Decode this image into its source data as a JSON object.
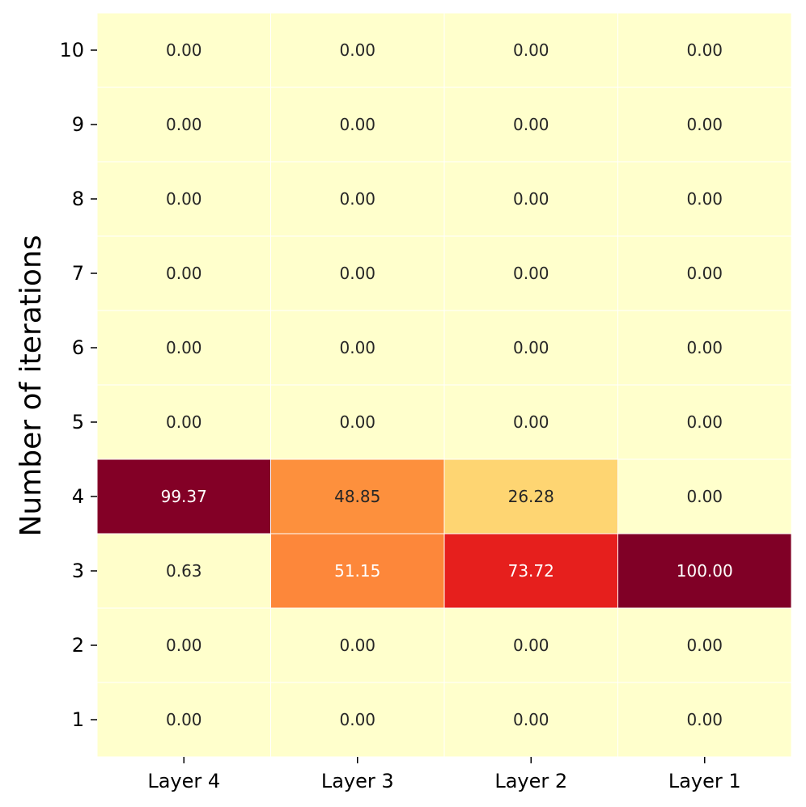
{
  "chart_data": {
    "type": "heatmap",
    "title": "",
    "xlabel": "",
    "ylabel": "Number of iterations",
    "x_categories": [
      "Layer 4",
      "Layer 3",
      "Layer 2",
      "Layer 1"
    ],
    "y_categories": [
      "10",
      "9",
      "8",
      "7",
      "6",
      "5",
      "4",
      "3",
      "2",
      "1"
    ],
    "values": [
      [
        0.0,
        0.0,
        0.0,
        0.0
      ],
      [
        0.0,
        0.0,
        0.0,
        0.0
      ],
      [
        0.0,
        0.0,
        0.0,
        0.0
      ],
      [
        0.0,
        0.0,
        0.0,
        0.0
      ],
      [
        0.0,
        0.0,
        0.0,
        0.0
      ],
      [
        0.0,
        0.0,
        0.0,
        0.0
      ],
      [
        99.37,
        48.85,
        26.28,
        0.0
      ],
      [
        0.63,
        51.15,
        73.72,
        100.0
      ],
      [
        0.0,
        0.0,
        0.0,
        0.0
      ],
      [
        0.0,
        0.0,
        0.0,
        0.0
      ]
    ],
    "value_format": "2 decimals",
    "colormap": "YlOrRd",
    "vmin": 0,
    "vmax": 100,
    "colorbar": false,
    "grid_line_color": "#ffffff",
    "dark_text_color": "#262626",
    "light_text_color": "#ffffff"
  }
}
